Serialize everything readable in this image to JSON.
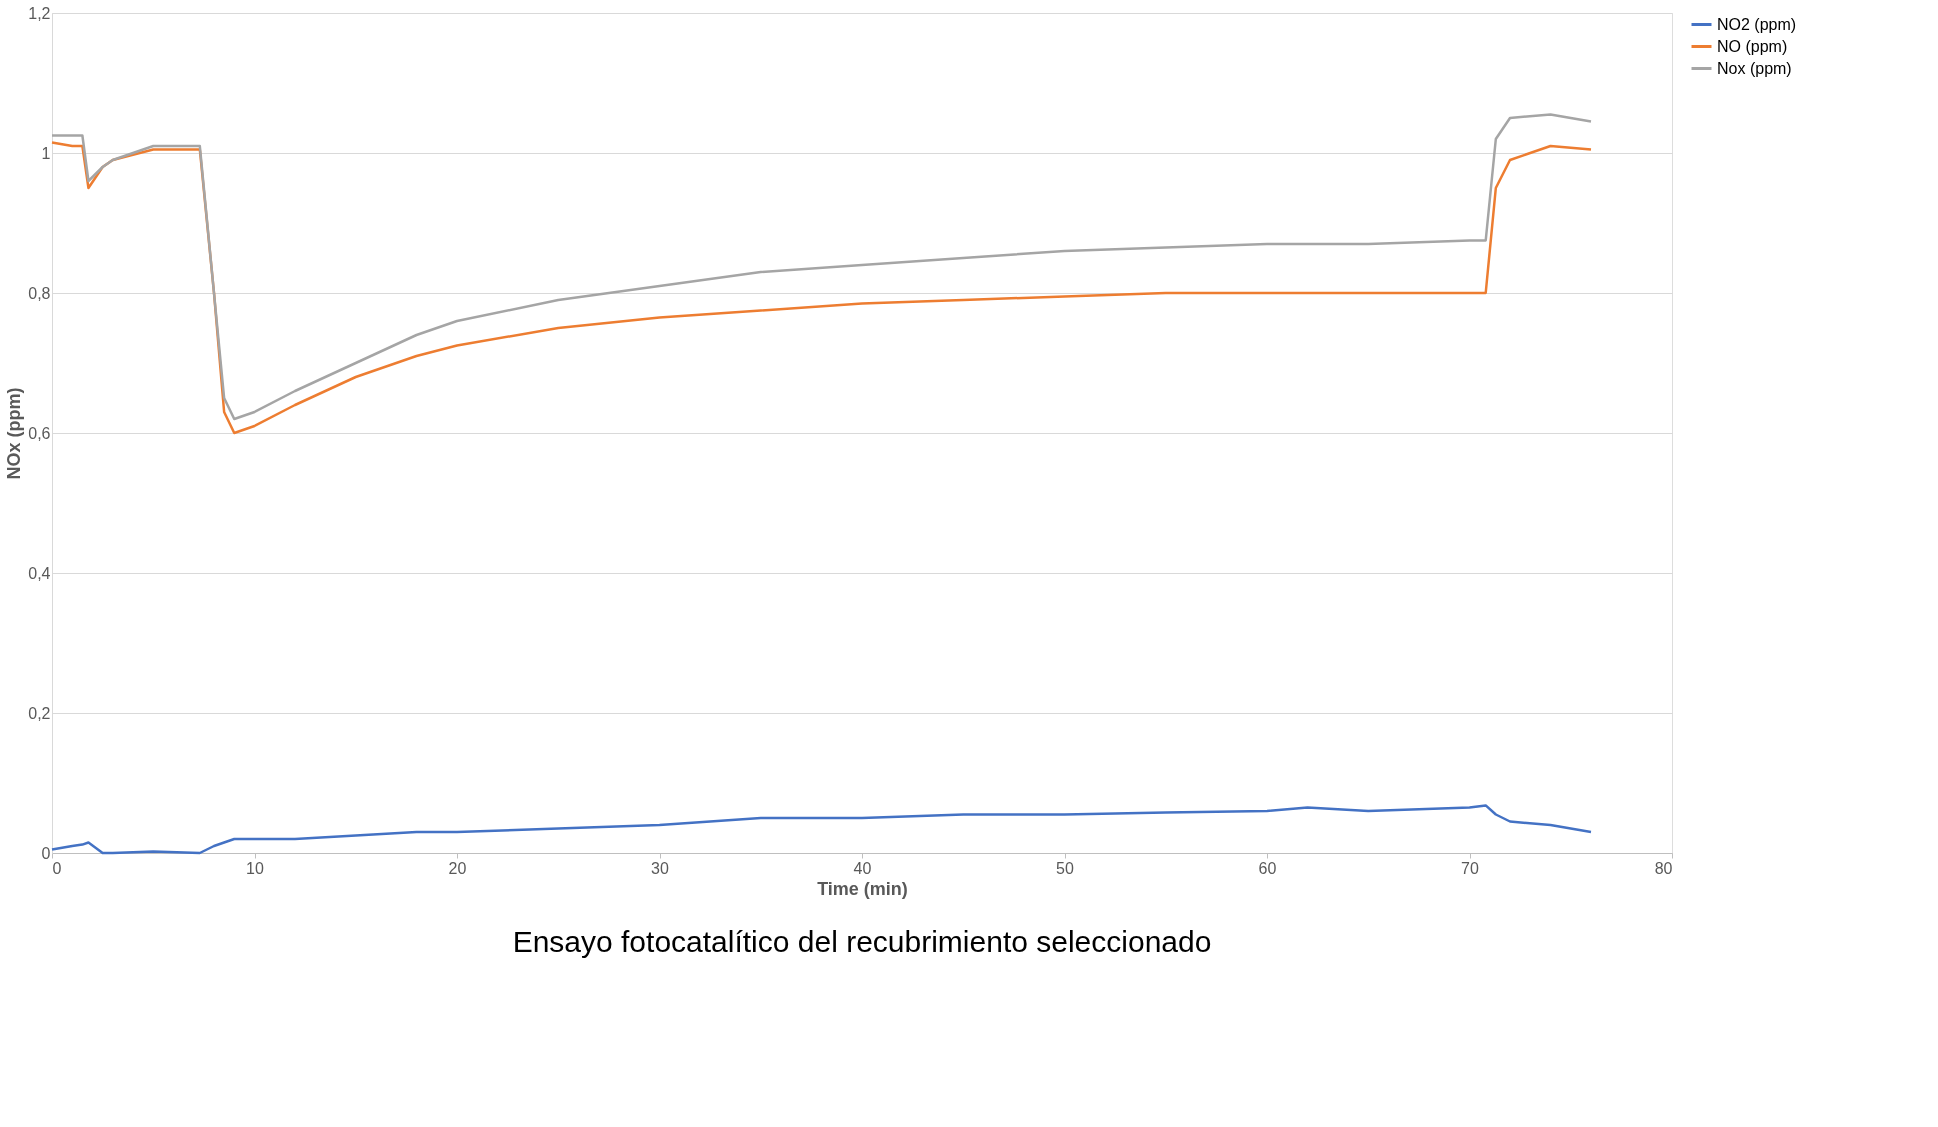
{
  "chart_data": {
    "type": "line",
    "xlabel": "Time (min)",
    "ylabel": "NOx (ppm)",
    "xlim": [
      0,
      80
    ],
    "xticks": [
      0,
      10,
      20,
      30,
      40,
      50,
      60,
      70,
      80
    ],
    "ylim": [
      0,
      1.2
    ],
    "yticks": [
      {
        "value": 0,
        "label": "0"
      },
      {
        "value": 0.2,
        "label": "0,2"
      },
      {
        "value": 0.4,
        "label": "0,4"
      },
      {
        "value": 0.6,
        "label": "0,6"
      },
      {
        "value": 0.8,
        "label": "0,8"
      },
      {
        "value": 1,
        "label": "1"
      },
      {
        "value": 1.2,
        "label": "1,2"
      }
    ],
    "grid": "y",
    "legend": "right",
    "line_style": "solid",
    "marker": "none",
    "x": [
      0,
      1,
      1.5,
      1.8,
      2.5,
      3,
      5,
      7.3,
      8,
      8.5,
      9,
      10,
      12,
      15,
      18,
      20,
      25,
      30,
      35,
      40,
      45,
      50,
      55,
      60,
      62,
      65,
      70,
      70.8,
      71.3,
      72,
      74,
      76
    ],
    "series": [
      {
        "name": "NO2 (ppm)",
        "color": "#4472c4",
        "values": [
          0.005,
          0.01,
          0.012,
          0.015,
          0.0,
          0.0,
          0.002,
          0.0,
          0.01,
          0.015,
          0.02,
          0.02,
          0.02,
          0.025,
          0.03,
          0.03,
          0.035,
          0.04,
          0.05,
          0.05,
          0.055,
          0.055,
          0.058,
          0.06,
          0.065,
          0.06,
          0.065,
          0.068,
          0.055,
          0.045,
          0.04,
          0.03
        ]
      },
      {
        "name": "NO (ppm)",
        "color": "#ed7d31",
        "values": [
          1.015,
          1.01,
          1.01,
          0.95,
          0.98,
          0.99,
          1.005,
          1.005,
          0.8,
          0.63,
          0.6,
          0.61,
          0.64,
          0.68,
          0.71,
          0.725,
          0.75,
          0.765,
          0.775,
          0.785,
          0.79,
          0.795,
          0.8,
          0.8,
          0.8,
          0.8,
          0.8,
          0.8,
          0.95,
          0.99,
          1.01,
          1.005
        ]
      },
      {
        "name": "Nox (ppm)",
        "color": "#a5a5a5",
        "values": [
          1.025,
          1.025,
          1.025,
          0.96,
          0.98,
          0.99,
          1.01,
          1.01,
          0.8,
          0.65,
          0.62,
          0.63,
          0.66,
          0.7,
          0.74,
          0.76,
          0.79,
          0.81,
          0.83,
          0.84,
          0.85,
          0.86,
          0.865,
          0.87,
          0.87,
          0.87,
          0.875,
          0.875,
          1.02,
          1.05,
          1.055,
          1.045
        ]
      }
    ],
    "annotations": [
      "Ensayo fotocatalítico del recubrimiento seleccionado"
    ]
  }
}
